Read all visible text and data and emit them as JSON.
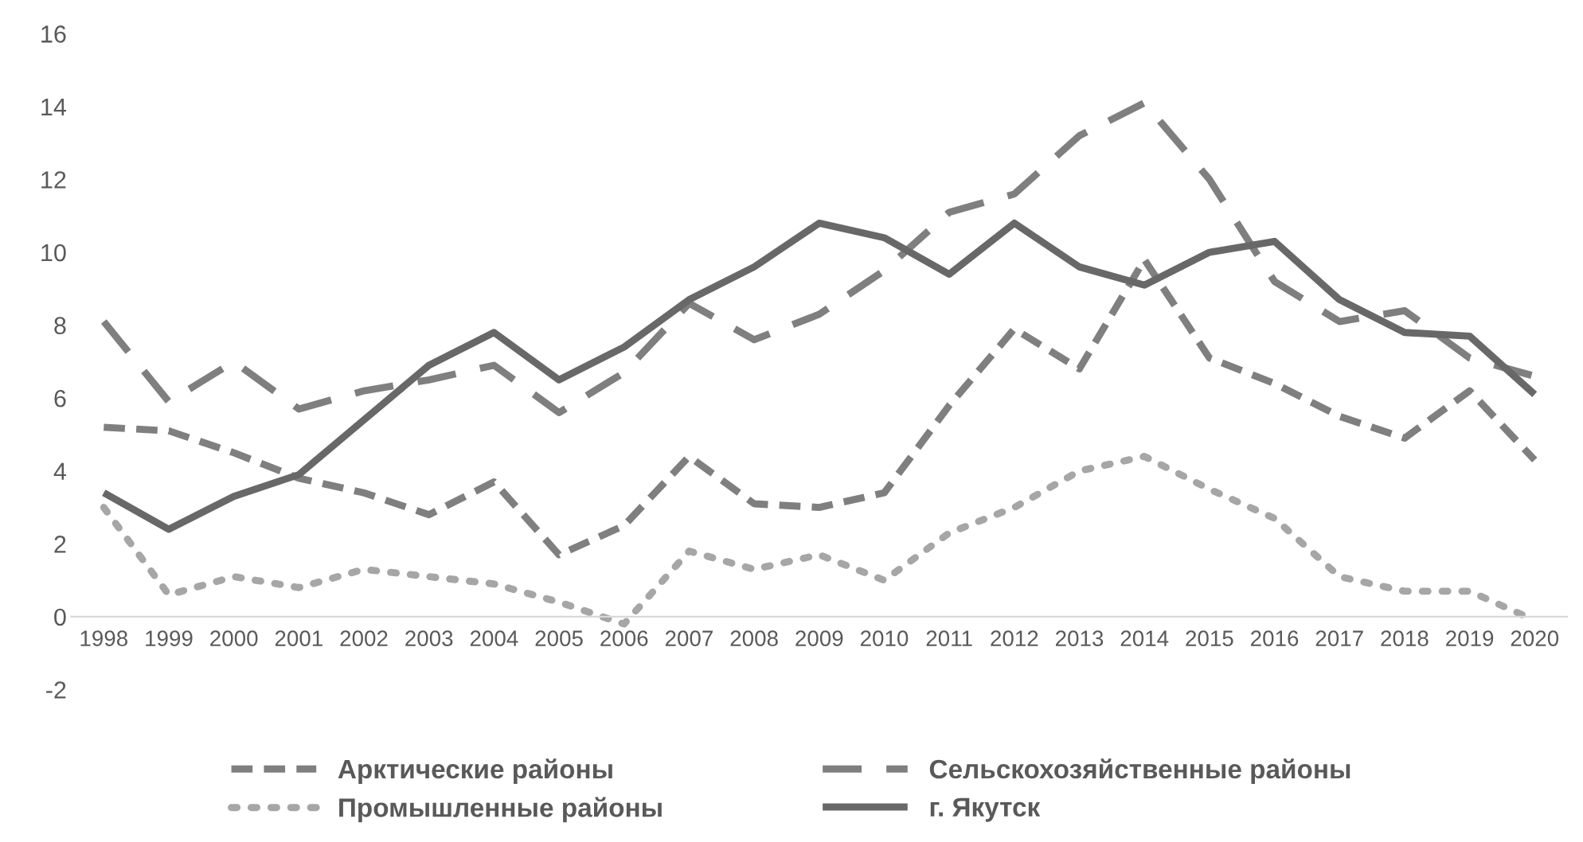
{
  "chart_data": {
    "type": "line",
    "categories": [
      "1998",
      "1999",
      "2000",
      "2001",
      "2002",
      "2003",
      "2004",
      "2005",
      "2006",
      "2007",
      "2008",
      "2009",
      "2010",
      "2011",
      "2012",
      "2013",
      "2014",
      "2015",
      "2016",
      "2017",
      "2018",
      "2019",
      "2020"
    ],
    "series": [
      {
        "name": "Арктические районы",
        "color": "#7f7f7f",
        "line_style": "dashed",
        "values": [
          5.2,
          5.1,
          4.5,
          3.8,
          3.4,
          2.8,
          3.7,
          1.7,
          2.5,
          4.4,
          3.1,
          3.0,
          3.4,
          5.8,
          7.9,
          6.8,
          9.8,
          7.1,
          6.4,
          5.5,
          4.9,
          6.2,
          4.3
        ]
      },
      {
        "name": "Сельскохозяйственные районы",
        "color": "#7f7f7f",
        "line_style": "dashed",
        "values": [
          8.1,
          5.9,
          7.0,
          5.7,
          6.2,
          6.5,
          6.9,
          5.6,
          6.7,
          8.6,
          7.6,
          8.3,
          9.5,
          11.1,
          11.6,
          13.2,
          14.1,
          12.0,
          9.2,
          8.1,
          8.4,
          7.1,
          6.6
        ]
      },
      {
        "name": "Промышленные районы",
        "color": "#a6a6a6",
        "line_style": "dotted",
        "values": [
          3.0,
          0.6,
          1.1,
          0.8,
          1.3,
          1.1,
          0.9,
          0.4,
          -0.2,
          1.8,
          1.3,
          1.7,
          1.0,
          2.3,
          3.0,
          4.0,
          4.4,
          3.5,
          2.7,
          1.1,
          0.7,
          0.7,
          -0.1
        ]
      },
      {
        "name": "г. Якутск",
        "color": "#686868",
        "line_style": "solid",
        "values": [
          3.4,
          2.4,
          3.3,
          3.9,
          5.4,
          6.9,
          7.8,
          6.5,
          7.4,
          8.7,
          9.6,
          10.8,
          10.4,
          9.4,
          10.8,
          9.6,
          9.1,
          10.0,
          10.3,
          8.7,
          7.8,
          7.7,
          6.1
        ]
      }
    ],
    "ylim": [
      -2,
      16
    ],
    "yticks": [
      -2,
      0,
      2,
      4,
      6,
      8,
      10,
      12,
      14,
      16
    ],
    "grid": false,
    "legend": "bottom",
    "marker": "none"
  }
}
